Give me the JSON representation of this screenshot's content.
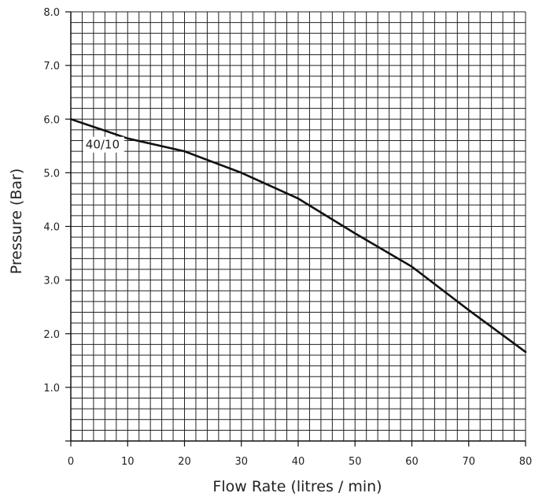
{
  "chart_data": {
    "type": "line",
    "xlabel": "Flow Rate (litres / min)",
    "ylabel": "Pressure (Bar)",
    "xlim": [
      0,
      80
    ],
    "ylim": [
      0,
      8
    ],
    "x_ticks": [
      {
        "value": 0,
        "label": "0"
      },
      {
        "value": 10,
        "label": "10"
      },
      {
        "value": 20,
        "label": "20"
      },
      {
        "value": 30,
        "label": "30"
      },
      {
        "value": 40,
        "label": "40"
      },
      {
        "value": 50,
        "label": "50"
      },
      {
        "value": 60,
        "label": "60"
      },
      {
        "value": 70,
        "label": "70"
      },
      {
        "value": 80,
        "label": "80"
      }
    ],
    "y_ticks": [
      {
        "value": 1,
        "label": "1.0"
      },
      {
        "value": 2,
        "label": "2.0"
      },
      {
        "value": 3,
        "label": "3.0"
      },
      {
        "value": 4,
        "label": "4.0"
      },
      {
        "value": 5,
        "label": "5.0"
      },
      {
        "value": 6,
        "label": "6.0"
      },
      {
        "value": 7,
        "label": "7.0"
      },
      {
        "value": 8,
        "label": "8.0"
      }
    ],
    "grid": true,
    "grid_minor_x": 2,
    "grid_minor_y": 0.2,
    "series": [
      {
        "name": "40/10",
        "color": "#111111",
        "points": [
          {
            "x": 0,
            "y": 6.0
          },
          {
            "x": 5,
            "y": 5.82
          },
          {
            "x": 10,
            "y": 5.64
          },
          {
            "x": 20,
            "y": 5.4
          },
          {
            "x": 30,
            "y": 5.0
          },
          {
            "x": 40,
            "y": 4.52
          },
          {
            "x": 50,
            "y": 3.87
          },
          {
            "x": 60,
            "y": 3.25
          },
          {
            "x": 70,
            "y": 2.44
          },
          {
            "x": 80,
            "y": 1.66
          }
        ]
      }
    ]
  }
}
